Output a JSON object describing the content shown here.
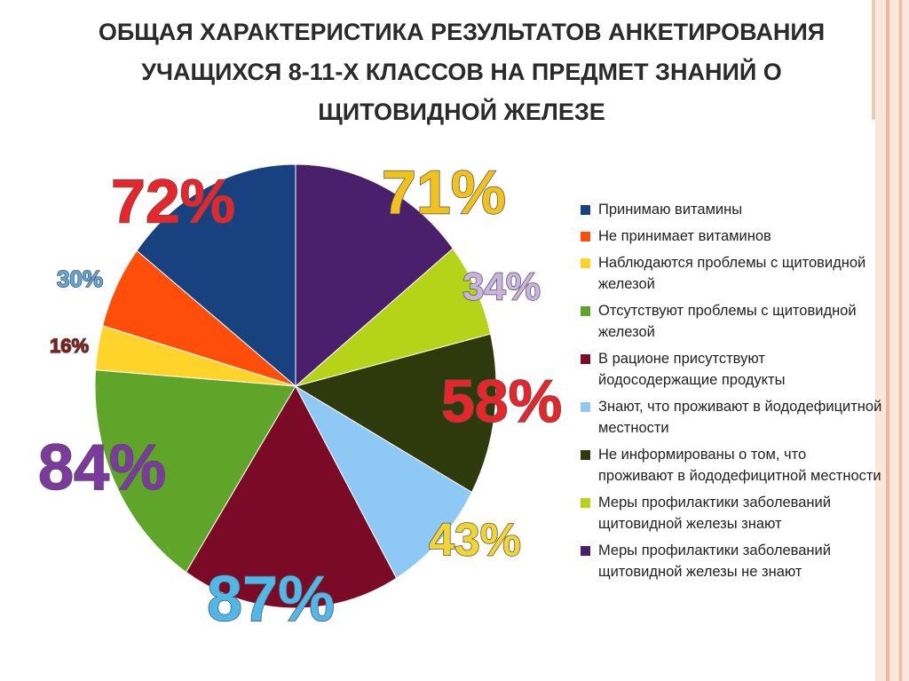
{
  "chart_data": {
    "type": "pie",
    "title": "ОБЩАЯ ХАРАКТЕРИСТИКА РЕЗУЛЬТАТОВ АНКЕТИРОВАНИЯ УЧАЩИХСЯ 8-11-Х КЛАССОВ НА ПРЕДМЕТ ЗНАНИЙ О ЩИТОВИДНОЙ ЖЕЛЕЗЕ",
    "categories": [
      "Принимаю витамины",
      "Не принимает витаминов",
      "Наблюдаются проблемы с щитовидной железой",
      "Отсутствуют проблемы с щитовидной железой",
      "В рационе присутствуют йодосодержащие продукты",
      "Знают, что проживают в йододефицитной местности",
      "Не информированы о том, что проживают в йододефицитной местности",
      "Меры профилактики заболеваний щитовидной железы знают",
      "Меры профилактики заболеваний щитовидной железы не знают"
    ],
    "values": [
      72,
      30,
      16,
      84,
      87,
      43,
      58,
      34,
      71
    ],
    "value_labels": [
      "72%",
      "30%",
      "16%",
      "84%",
      "87%",
      "43%",
      "58%",
      "34%",
      "71%"
    ],
    "colors": [
      "#17417f",
      "#ff4d0a",
      "#ffd42a",
      "#5fa52a",
      "#7a0a26",
      "#8ec8f5",
      "#2e3a0c",
      "#b5d418",
      "#4a1f6b"
    ],
    "label_colors": [
      "#e8252a",
      "#5aa8e0",
      "#8a1a1a",
      "#7b3a9e",
      "#4fb8e8",
      "#f2d530",
      "#e8252a",
      "#c9b3df",
      "#f2c21c"
    ],
    "legend": "right"
  }
}
